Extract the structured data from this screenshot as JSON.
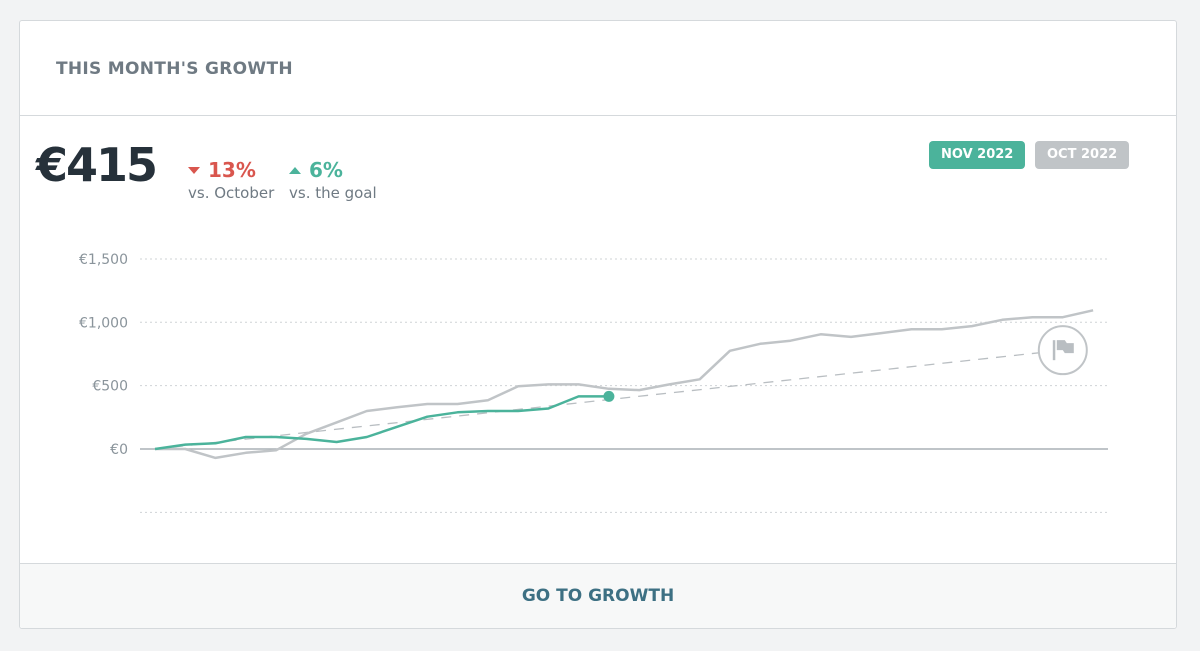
{
  "card": {
    "title": "THIS MONTH'S GROWTH"
  },
  "summary": {
    "amount": "€415",
    "vs_previous": {
      "value": "13%",
      "direction": "down",
      "label": "vs. October",
      "color": "#d9564e"
    },
    "vs_goal": {
      "value": "6%",
      "direction": "up",
      "label": "vs. the goal",
      "color": "#4bb39b"
    }
  },
  "period_toggle": [
    {
      "label": "NOV 2022",
      "active": true,
      "color": "#4bb39b"
    },
    {
      "label": "OCT 2022",
      "active": false,
      "color": "#c0c4c7"
    }
  ],
  "footer": {
    "link_label": "GO TO GROWTH"
  },
  "chart_data": {
    "type": "line",
    "ylim": [
      -500,
      1500
    ],
    "yticks": [
      1500,
      1000,
      500,
      0,
      -500
    ],
    "ytick_labels": [
      "€1,500",
      "€1,000",
      "€500",
      "€0",
      ""
    ],
    "grid": true,
    "series": [
      {
        "name": "OCT 2022",
        "color": "#c0c4c7",
        "values": [
          0,
          0,
          -70,
          -30,
          -10,
          120,
          210,
          300,
          330,
          355,
          355,
          385,
          495,
          510,
          510,
          475,
          465,
          510,
          550,
          775,
          830,
          855,
          905,
          885,
          915,
          945,
          945,
          970,
          1020,
          1040,
          1040,
          1095
        ]
      },
      {
        "name": "NOV 2022",
        "color": "#4bb39b",
        "values": [
          0,
          35,
          45,
          95,
          95,
          80,
          55,
          95,
          175,
          255,
          290,
          300,
          300,
          320,
          415,
          415
        ]
      },
      {
        "name": "Goal",
        "color": "#b9bec2",
        "style": "dashed",
        "values_start_end": [
          0,
          780
        ],
        "end_index": 30,
        "marker": "flag-icon"
      }
    ]
  }
}
